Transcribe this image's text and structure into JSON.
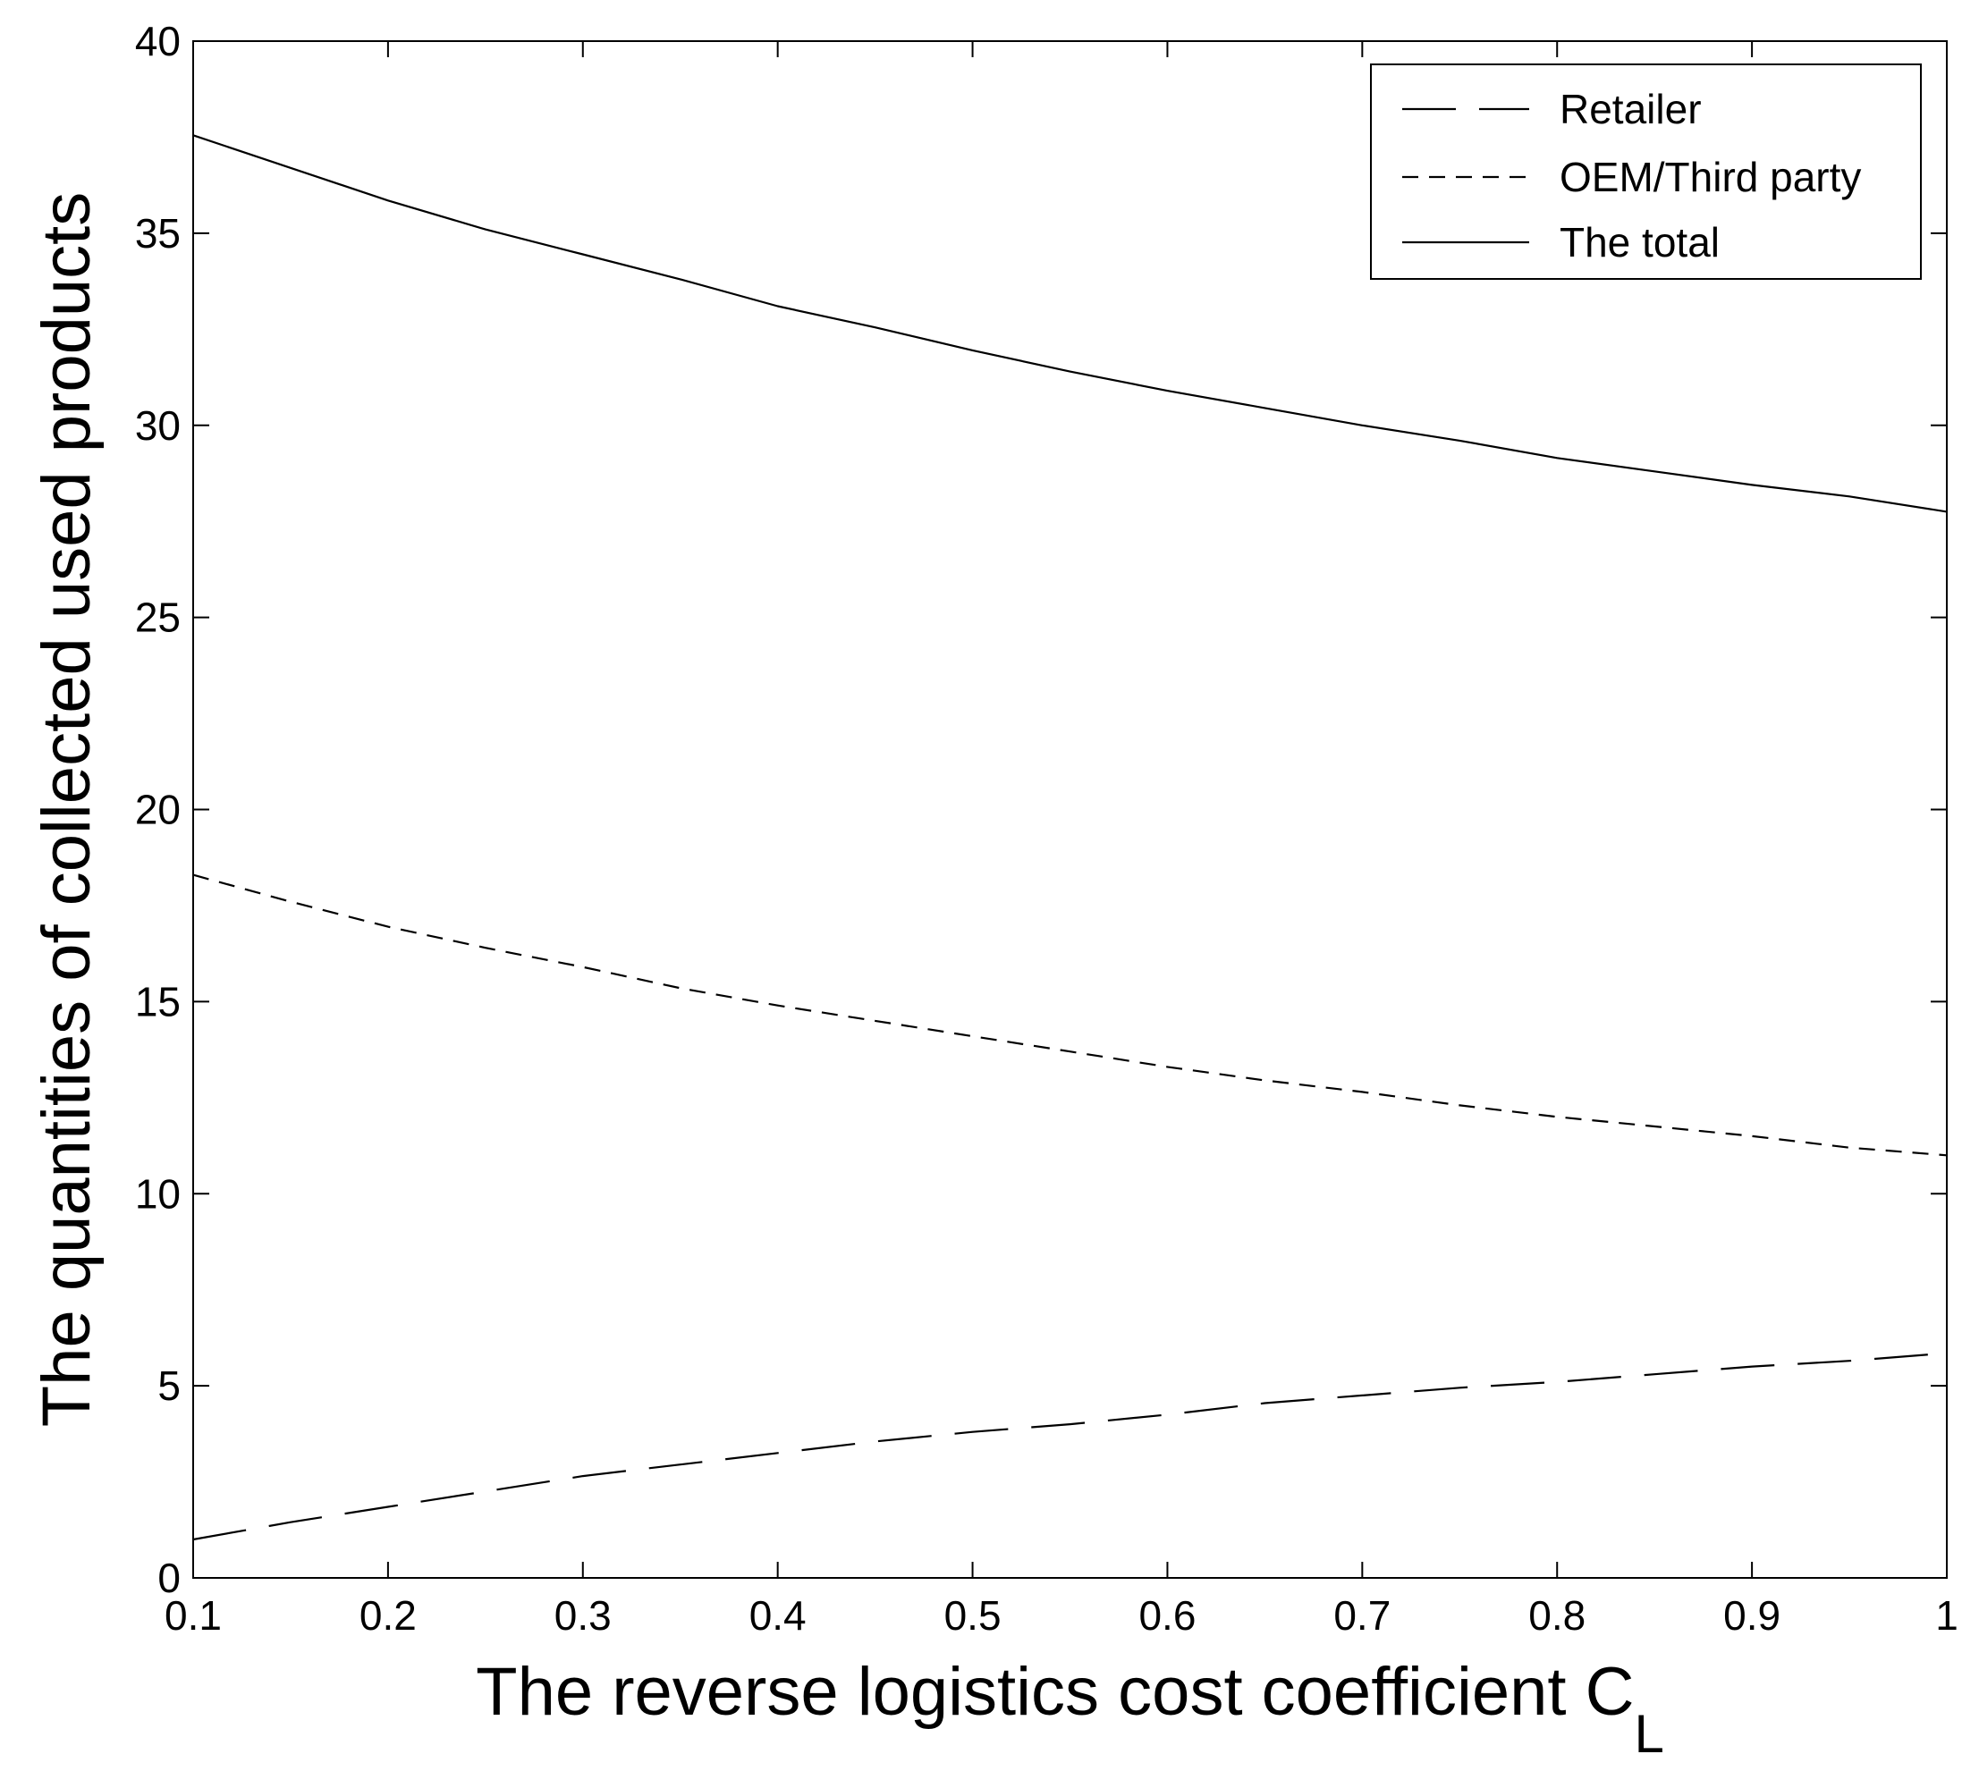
{
  "chart_data": {
    "type": "line",
    "title": "",
    "xlabel": "The reverse logistics cost coefficient C",
    "xlabel_subscript": "L",
    "ylabel": "The quantities of collected used products",
    "xlim": [
      0.1,
      1
    ],
    "ylim": [
      0,
      40
    ],
    "xticks": [
      0.1,
      0.2,
      0.3,
      0.4,
      0.5,
      0.6,
      0.7,
      0.8,
      0.9,
      1
    ],
    "xtick_labels": [
      "0.1",
      "0.2",
      "0.3",
      "0.4",
      "0.5",
      "0.6",
      "0.7",
      "0.8",
      "0.9",
      "1"
    ],
    "yticks": [
      0,
      5,
      10,
      15,
      20,
      25,
      30,
      35,
      40
    ],
    "ytick_labels": [
      "0",
      "5",
      "10",
      "15",
      "20",
      "25",
      "30",
      "35",
      "40"
    ],
    "grid": false,
    "legend_position": "top-right",
    "x": [
      0.1,
      0.15,
      0.2,
      0.25,
      0.3,
      0.35,
      0.4,
      0.45,
      0.5,
      0.55,
      0.6,
      0.65,
      0.7,
      0.75,
      0.8,
      0.85,
      0.9,
      0.95,
      1.0
    ],
    "series": [
      {
        "name": "Retailer",
        "style": "dashed-long",
        "color": "#000000",
        "values": [
          1.0,
          1.45,
          1.85,
          2.25,
          2.65,
          2.95,
          3.25,
          3.55,
          3.8,
          4.0,
          4.25,
          4.55,
          4.75,
          4.95,
          5.1,
          5.3,
          5.5,
          5.65,
          5.85
        ]
      },
      {
        "name": "OEM/Third party",
        "style": "dashed",
        "color": "#000000",
        "values": [
          18.3,
          17.6,
          16.95,
          16.4,
          15.9,
          15.35,
          14.9,
          14.5,
          14.1,
          13.7,
          13.3,
          12.95,
          12.65,
          12.3,
          12.0,
          11.75,
          11.5,
          11.2,
          11.0
        ]
      },
      {
        "name": "The total",
        "style": "solid",
        "color": "#000000",
        "values": [
          37.55,
          36.7,
          35.85,
          35.1,
          34.45,
          33.8,
          33.1,
          32.55,
          31.95,
          31.4,
          30.9,
          30.45,
          30.0,
          29.6,
          29.15,
          28.8,
          28.45,
          28.15,
          27.75
        ]
      }
    ]
  }
}
